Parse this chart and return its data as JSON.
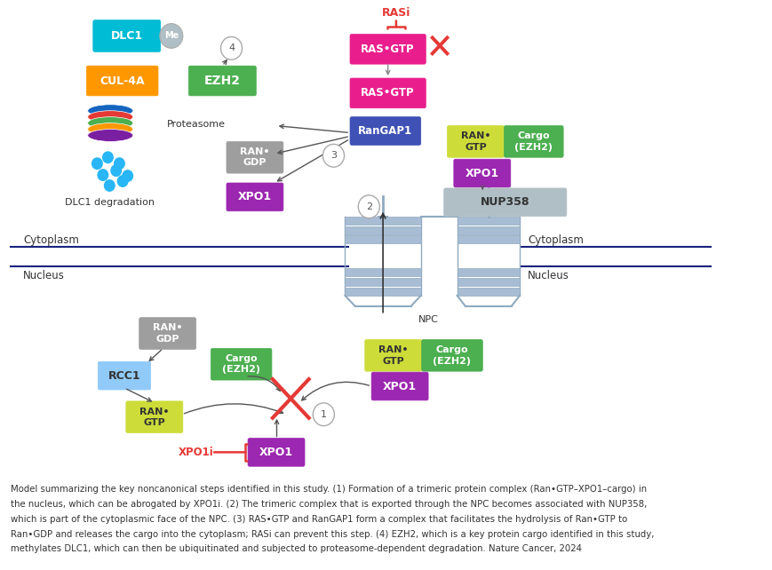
{
  "fig_width": 8.7,
  "fig_height": 6.42,
  "bg_color": "#ffffff",
  "caption_line1": "Model summarizing the key noncanonical steps identified in this study. (1) Formation of a trimeric protein complex (Ran•GTP–XPO1–cargo) in",
  "caption_line2": "the nucleus, which can be abrogated by XPO1i. (2) The trimeric complex that is exported through the NPC becomes associated with NUP358,",
  "caption_line3": "which is part of the cytoplasmic face of the NPC. (3) RAS•GTP and RanGAP1 form a complex that facilitates the hydrolysis of Ran•GTP to",
  "caption_line4": "Ran•GDP and releases the cargo into the cytoplasm; RASi can prevent this step. (4) EZH2, which is a key protein cargo identified in this study,",
  "caption_line5": "methylates DLC1, which can then be ubiquitinated and subjected to proteasome-dependent degradation. Nature Cancer, 2024",
  "colors": {
    "cyan": "#00bcd4",
    "orange": "#ff9800",
    "green": "#4caf50",
    "magenta": "#e91e8c",
    "blue_dark": "#3f51b5",
    "gray": "#9e9e9e",
    "purple": "#9c27b0",
    "yellow_green": "#cddc39",
    "light_blue": "#90caf9",
    "light_gray": "#b0bec5",
    "red": "#e53935",
    "membrane": "#1a237e",
    "npc_bar": "#a8bdd4",
    "dark_text": "#333333",
    "arrow": "#555555"
  }
}
